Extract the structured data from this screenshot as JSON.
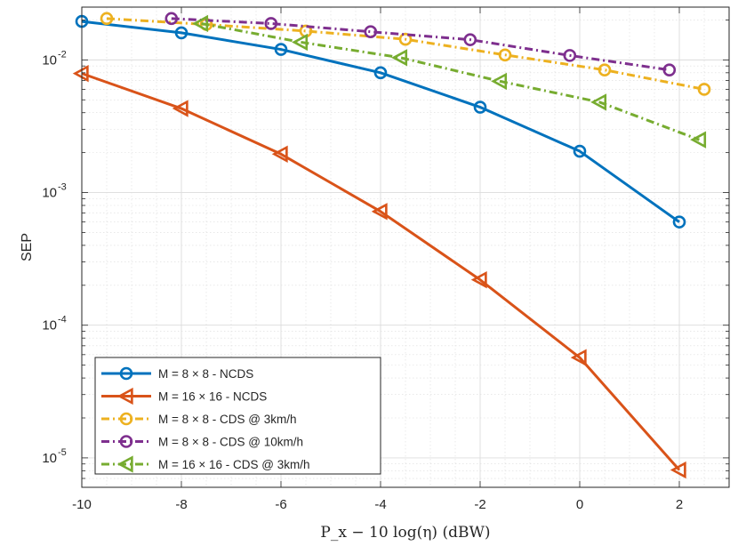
{
  "chart_data": {
    "type": "line",
    "yscale": "log",
    "xlabel": "P_x − 10 log(η) (dBW)",
    "ylabel": "SEP",
    "xlim": [
      -10,
      3
    ],
    "ylim": [
      6e-06,
      0.025
    ],
    "xticks": [
      -10,
      -8,
      -6,
      -4,
      -2,
      0,
      2
    ],
    "xtick_labels": [
      "-10",
      "-8",
      "-6",
      "-4",
      "-2",
      "0",
      "2"
    ],
    "yticks": [
      1e-05,
      0.0001,
      0.001,
      0.01
    ],
    "ytick_labels": [
      {
        "base": "10",
        "exp": "-5"
      },
      {
        "base": "10",
        "exp": "-4"
      },
      {
        "base": "10",
        "exp": "-3"
      },
      {
        "base": "10",
        "exp": "-2"
      }
    ],
    "grid": true,
    "legend_position": "bottom-left",
    "series": [
      {
        "name": "M = 8 × 8 - NCDS",
        "color": "#0072BD",
        "dash": "solid",
        "marker": "circle",
        "x": [
          -10,
          -8,
          -6,
          -4,
          -2,
          0,
          2
        ],
        "y": [
          0.0195,
          0.016,
          0.012,
          0.008,
          0.0044,
          0.00205,
          0.0006
        ]
      },
      {
        "name": "M = 16 × 16 - NCDS",
        "color": "#D95319",
        "dash": "solid",
        "marker": "triangle-left",
        "x": [
          -10,
          -8,
          -6,
          -4,
          -2,
          0,
          2
        ],
        "y": [
          0.0079,
          0.0043,
          0.00195,
          0.00072,
          0.00022,
          5.7e-05,
          8.1e-06
        ]
      },
      {
        "name": "M = 8 × 8 - CDS @ 3km/h",
        "color": "#EDB120",
        "dash": "dashdot",
        "marker": "circle",
        "x": [
          -9.5,
          -7.5,
          -5.5,
          -3.5,
          -1.5,
          0.5,
          2.5
        ],
        "y": [
          0.0205,
          0.0185,
          0.0165,
          0.0143,
          0.0109,
          0.0084,
          0.006
        ]
      },
      {
        "name": "M = 8 × 8 - CDS @ 10km/h",
        "color": "#7E2F8E",
        "dash": "dashdot",
        "marker": "circle",
        "x": [
          -8.2,
          -6.2,
          -4.2,
          -2.2,
          -0.2,
          1.8
        ],
        "y": [
          0.0205,
          0.0188,
          0.0163,
          0.0142,
          0.0108,
          0.0084
        ]
      },
      {
        "name": "M = 16 × 16 - CDS @ 3km/h",
        "color": "#77AC30",
        "dash": "dashdot",
        "marker": "triangle-left",
        "x": [
          -7.6,
          -5.6,
          -3.6,
          -1.6,
          0.4,
          2.4
        ],
        "y": [
          0.0188,
          0.0136,
          0.0104,
          0.0069,
          0.0048,
          0.0025
        ]
      }
    ]
  }
}
